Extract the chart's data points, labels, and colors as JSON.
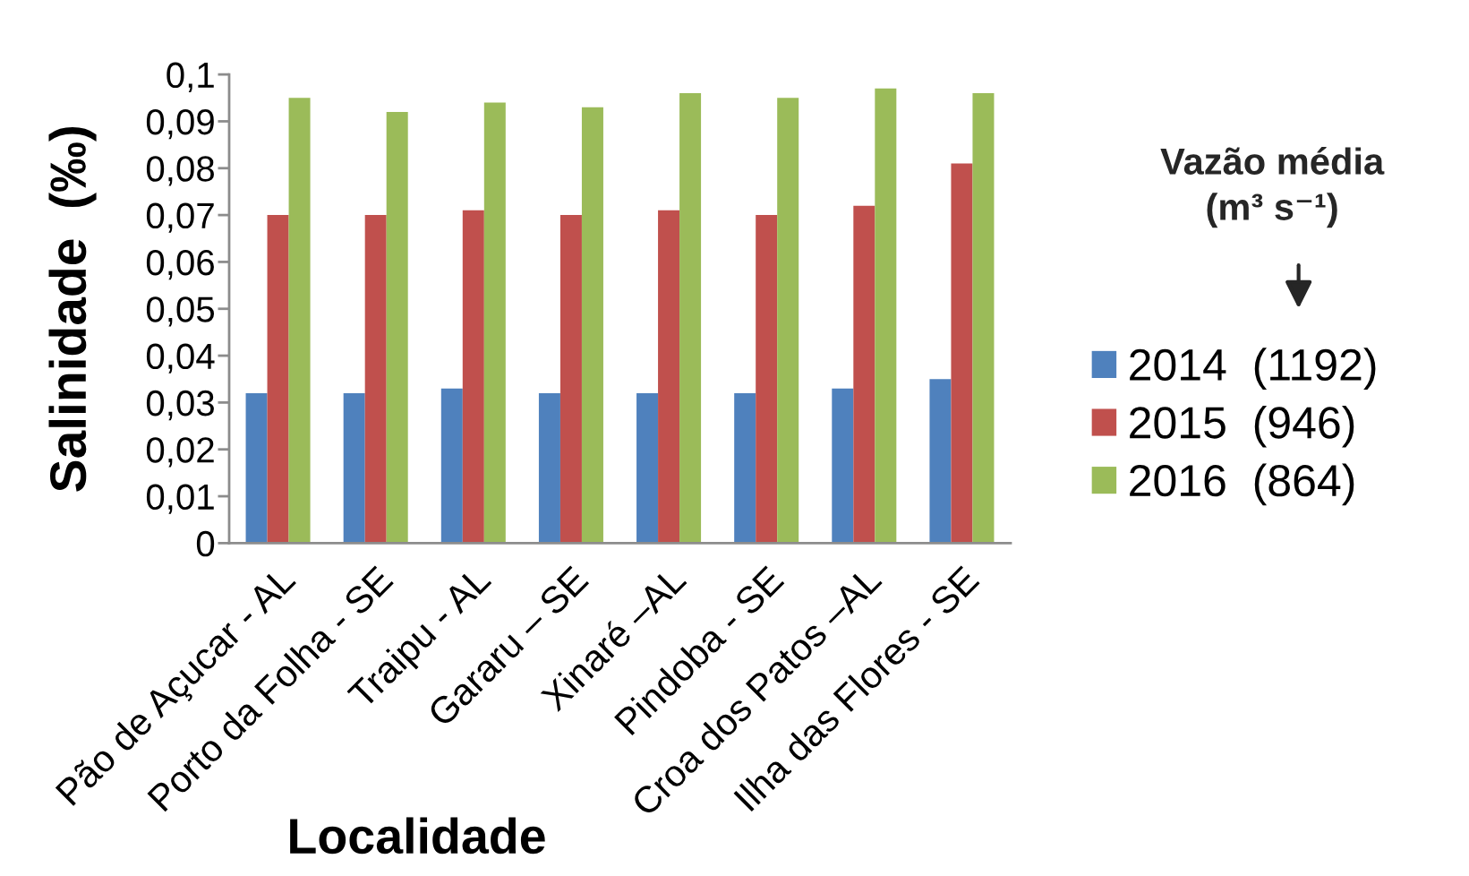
{
  "chart_data": {
    "type": "bar",
    "xlabel": "Localidade",
    "ylabel": "Salinidade  (‰)",
    "legend_title": "Vazão média\n(m³ s⁻¹)",
    "categories": [
      "Pão de Açucar - AL",
      "Porto da Folha - SE",
      "Traipu - AL",
      "Gararu – SE",
      "Xinaré –AL",
      "Pindoba - SE",
      "Croa dos Patos –AL",
      "Ilha das Flores - SE"
    ],
    "series": [
      {
        "name": "2014  (1192)",
        "color": "#4f81bd",
        "values": [
          0.032,
          0.032,
          0.033,
          0.032,
          0.032,
          0.032,
          0.033,
          0.035
        ]
      },
      {
        "name": "2015  (946)",
        "color": "#c0504d",
        "values": [
          0.07,
          0.07,
          0.071,
          0.07,
          0.071,
          0.07,
          0.072,
          0.081
        ]
      },
      {
        "name": "2016  (864)",
        "color": "#9bbb59",
        "values": [
          0.095,
          0.092,
          0.094,
          0.093,
          0.096,
          0.095,
          0.097,
          0.096
        ]
      }
    ],
    "ylim": [
      0,
      0.1
    ],
    "yticks": [
      0,
      {
        "value": 0.01,
        "label": "0,01"
      },
      {
        "value": 0.02,
        "label": "0,02"
      },
      {
        "value": 0.03,
        "label": "0,03"
      },
      {
        "value": 0.04,
        "label": "0,04"
      },
      {
        "value": 0.05,
        "label": "0,05"
      },
      {
        "value": 0.06,
        "label": "0,06"
      },
      {
        "value": 0.07,
        "label": "0,07"
      },
      {
        "value": 0.08,
        "label": "0,08"
      },
      {
        "value": 0.09,
        "label": "0,09"
      },
      {
        "value": 0.1,
        "label": "0,1"
      }
    ],
    "legend": "right"
  }
}
